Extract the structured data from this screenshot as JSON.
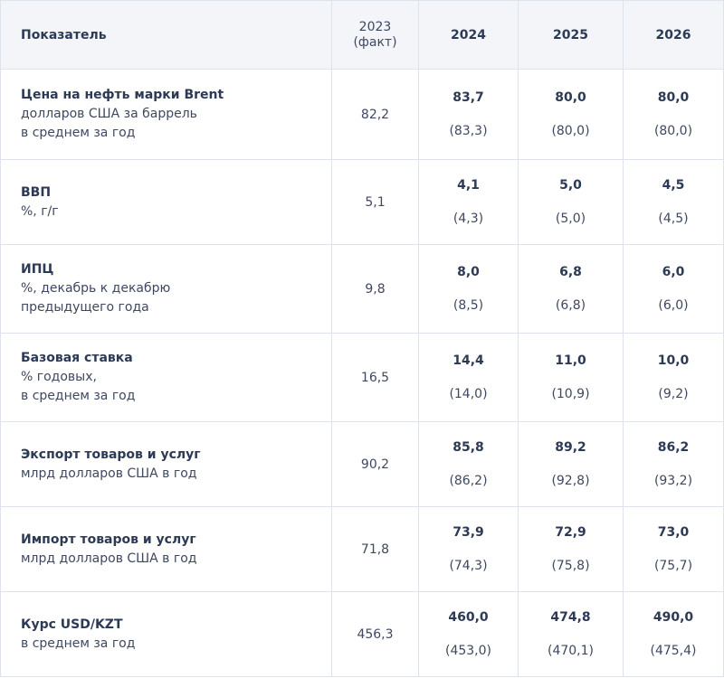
{
  "table": {
    "headers": {
      "indicator": "Показатель",
      "fact_year": "2023",
      "fact_note": "(факт)",
      "y2024": "2024",
      "y2025": "2025",
      "y2026": "2026"
    },
    "rows": [
      {
        "title": "Цена на нефть марки Brent",
        "desc_lines": [
          "долларов США за баррель",
          "в среднем за год"
        ],
        "fact": "82,2",
        "forecast": [
          {
            "value": "83,7",
            "prev": "(83,3)"
          },
          {
            "value": "80,0",
            "prev": "(80,0)"
          },
          {
            "value": "80,0",
            "prev": "(80,0)"
          }
        ]
      },
      {
        "title": "ВВП",
        "desc_lines": [
          "%, г/г"
        ],
        "fact": "5,1",
        "forecast": [
          {
            "value": "4,1",
            "prev": "(4,3)"
          },
          {
            "value": "5,0",
            "prev": "(5,0)"
          },
          {
            "value": "4,5",
            "prev": "(4,5)"
          }
        ]
      },
      {
        "title": "ИПЦ",
        "desc_lines": [
          "%, декабрь к декабрю",
          "предыдущего года"
        ],
        "fact": "9,8",
        "forecast": [
          {
            "value": "8,0",
            "prev": "(8,5)"
          },
          {
            "value": "6,8",
            "prev": "(6,8)"
          },
          {
            "value": "6,0",
            "prev": "(6,0)"
          }
        ]
      },
      {
        "title": "Базовая ставка",
        "desc_lines": [
          "% годовых,",
          "в среднем за год"
        ],
        "fact": "16,5",
        "forecast": [
          {
            "value": "14,4",
            "prev": "(14,0)"
          },
          {
            "value": "11,0",
            "prev": "(10,9)"
          },
          {
            "value": "10,0",
            "prev": "(9,2)"
          }
        ]
      },
      {
        "title": "Экспорт товаров и услуг",
        "desc_lines": [
          "млрд долларов США в год"
        ],
        "fact": "90,2",
        "forecast": [
          {
            "value": "85,8",
            "prev": "(86,2)"
          },
          {
            "value": "89,2",
            "prev": "(92,8)"
          },
          {
            "value": "86,2",
            "prev": "(93,2)"
          }
        ]
      },
      {
        "title": "Импорт товаров и услуг",
        "desc_lines": [
          "млрд долларов США в год"
        ],
        "fact": "71,8",
        "forecast": [
          {
            "value": "73,9",
            "prev": "(74,3)"
          },
          {
            "value": "72,9",
            "prev": "(75,8)"
          },
          {
            "value": "73,0",
            "prev": "(75,7)"
          }
        ]
      },
      {
        "title": "Курс USD/KZT",
        "desc_lines": [
          "в среднем за год"
        ],
        "fact": "456,3",
        "forecast": [
          {
            "value": "460,0",
            "prev": "(453,0)"
          },
          {
            "value": "474,8",
            "prev": "(470,1)"
          },
          {
            "value": "490,0",
            "prev": "(475,4)"
          }
        ]
      }
    ]
  }
}
